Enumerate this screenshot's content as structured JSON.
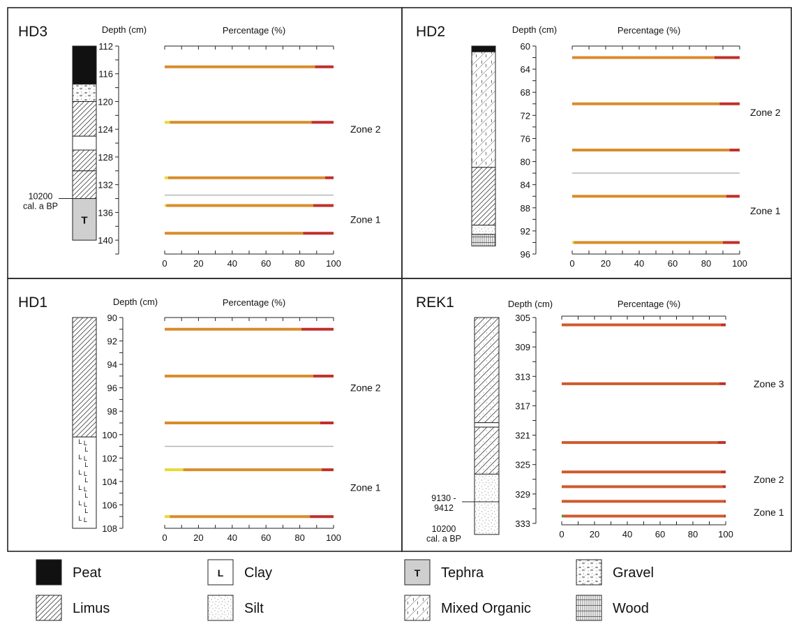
{
  "chart_data": [
    {
      "type": "bar",
      "site": "HD3",
      "depth_label": "Depth (cm)",
      "xlabel": "Percentage (%)",
      "depth_ticks": [
        112,
        116,
        120,
        124,
        128,
        132,
        136,
        140
      ],
      "depth_range": [
        112,
        142
      ],
      "x_ticks": [
        0,
        20,
        40,
        60,
        80,
        100
      ],
      "samples": [
        {
          "depth": 115,
          "segments": [
            {
              "color": "#d98c2b",
              "value": 89
            },
            {
              "color": "#c0302a",
              "value": 11
            }
          ]
        },
        {
          "depth": 123,
          "segments": [
            {
              "color": "#e8d83a",
              "value": 3
            },
            {
              "color": "#d98c2b",
              "value": 84
            },
            {
              "color": "#c0302a",
              "value": 13
            }
          ]
        },
        {
          "depth": 131,
          "segments": [
            {
              "color": "#e8d83a",
              "value": 2
            },
            {
              "color": "#d98c2b",
              "value": 93
            },
            {
              "color": "#c0302a",
              "value": 5
            }
          ]
        },
        {
          "depth": 135,
          "segments": [
            {
              "color": "#e8d83a",
              "value": 1
            },
            {
              "color": "#d98c2b",
              "value": 87
            },
            {
              "color": "#c0302a",
              "value": 12
            }
          ]
        },
        {
          "depth": 139,
          "segments": [
            {
              "color": "#d98c2b",
              "value": 82
            },
            {
              "color": "#c0302a",
              "value": 18
            }
          ]
        }
      ],
      "zone_boundaries": [
        133.5
      ],
      "zones": [
        {
          "label": "Zone 2",
          "depth": 124
        },
        {
          "label": "Zone 1",
          "depth": 137
        }
      ],
      "column": [
        {
          "from": 112,
          "to": 117.5,
          "type": "peat"
        },
        {
          "from": 117.5,
          "to": 120,
          "type": "gravel"
        },
        {
          "from": 120,
          "to": 125,
          "type": "limus"
        },
        {
          "from": 125,
          "to": 127,
          "type": "blank"
        },
        {
          "from": 127,
          "to": 130,
          "type": "limus"
        },
        {
          "from": 130,
          "to": 134,
          "type": "limus"
        },
        {
          "from": 134,
          "to": 140,
          "type": "tephra",
          "label": "T"
        }
      ],
      "date_annotation": {
        "lines": [
          "10200",
          "cal. a BP"
        ],
        "depth": 134
      }
    },
    {
      "type": "bar",
      "site": "HD2",
      "depth_label": "Depth (cm)",
      "xlabel": "Percentage (%)",
      "depth_ticks": [
        60,
        64,
        68,
        72,
        76,
        80,
        84,
        88,
        92,
        96
      ],
      "depth_range": [
        60,
        96
      ],
      "x_ticks": [
        0,
        20,
        40,
        60,
        80,
        100
      ],
      "samples": [
        {
          "depth": 62,
          "segments": [
            {
              "color": "#d98c2b",
              "value": 85
            },
            {
              "color": "#c0302a",
              "value": 15
            }
          ]
        },
        {
          "depth": 70,
          "segments": [
            {
              "color": "#d98c2b",
              "value": 88
            },
            {
              "color": "#c0302a",
              "value": 12
            }
          ]
        },
        {
          "depth": 78,
          "segments": [
            {
              "color": "#d98c2b",
              "value": 94
            },
            {
              "color": "#c0302a",
              "value": 6
            }
          ]
        },
        {
          "depth": 86,
          "segments": [
            {
              "color": "#d98c2b",
              "value": 92
            },
            {
              "color": "#c0302a",
              "value": 8
            }
          ]
        },
        {
          "depth": 94,
          "segments": [
            {
              "color": "#e8d83a",
              "value": 1
            },
            {
              "color": "#d98c2b",
              "value": 89
            },
            {
              "color": "#c0302a",
              "value": 10
            }
          ]
        }
      ],
      "zone_boundaries": [
        82
      ],
      "zones": [
        {
          "label": "Zone 2",
          "depth": 71.5
        },
        {
          "label": "Zone 1",
          "depth": 88.5
        }
      ],
      "column": [
        {
          "from": 60,
          "to": 61,
          "type": "peat"
        },
        {
          "from": 61,
          "to": 81,
          "type": "mixed"
        },
        {
          "from": 81,
          "to": 91,
          "type": "limus"
        },
        {
          "from": 91,
          "to": 92.6,
          "type": "silt"
        },
        {
          "from": 92.6,
          "to": 94.6,
          "type": "wood"
        }
      ]
    },
    {
      "type": "bar",
      "site": "HD1",
      "depth_label": "Depth (cm)",
      "xlabel": "Percentage (%)",
      "depth_ticks": [
        90,
        92,
        94,
        96,
        98,
        100,
        102,
        104,
        106,
        108
      ],
      "depth_range": [
        90,
        108
      ],
      "x_ticks": [
        0,
        20,
        40,
        60,
        80,
        100
      ],
      "samples": [
        {
          "depth": 91,
          "segments": [
            {
              "color": "#d98c2b",
              "value": 81
            },
            {
              "color": "#c0302a",
              "value": 19
            }
          ]
        },
        {
          "depth": 95,
          "segments": [
            {
              "color": "#d98c2b",
              "value": 88
            },
            {
              "color": "#c0302a",
              "value": 12
            }
          ]
        },
        {
          "depth": 99,
          "segments": [
            {
              "color": "#d98c2b",
              "value": 92
            },
            {
              "color": "#c0302a",
              "value": 8
            }
          ]
        },
        {
          "depth": 103,
          "segments": [
            {
              "color": "#e8d83a",
              "value": 11
            },
            {
              "color": "#d98c2b",
              "value": 82
            },
            {
              "color": "#c0302a",
              "value": 7
            }
          ]
        },
        {
          "depth": 107,
          "segments": [
            {
              "color": "#e8d83a",
              "value": 3
            },
            {
              "color": "#d98c2b",
              "value": 83
            },
            {
              "color": "#c0302a",
              "value": 14
            }
          ]
        }
      ],
      "zone_boundaries": [
        101
      ],
      "zones": [
        {
          "label": "Zone 2",
          "depth": 96
        },
        {
          "label": "Zone 1",
          "depth": 104.5
        }
      ],
      "column": [
        {
          "from": 90,
          "to": 100.2,
          "type": "limus"
        },
        {
          "from": 100.2,
          "to": 108,
          "type": "clay"
        }
      ]
    },
    {
      "type": "bar",
      "site": "REK1",
      "depth_label": "Depth (cm)",
      "xlabel": "Percentage (%)",
      "depth_ticks": [
        305,
        309,
        313,
        317,
        321,
        325,
        329,
        333
      ],
      "depth_range": [
        305,
        333
      ],
      "x_ticks": [
        0,
        20,
        40,
        60,
        80,
        100
      ],
      "samples": [
        {
          "depth": 306,
          "segments": [
            {
              "color": "#cf5a2c",
              "value": 97
            },
            {
              "color": "#c0302a",
              "value": 3
            }
          ]
        },
        {
          "depth": 314,
          "segments": [
            {
              "color": "#cf5a2c",
              "value": 96
            },
            {
              "color": "#c0302a",
              "value": 4
            }
          ]
        },
        {
          "depth": 322,
          "segments": [
            {
              "color": "#cf5a2c",
              "value": 95
            },
            {
              "color": "#c0302a",
              "value": 5
            }
          ]
        },
        {
          "depth": 326,
          "segments": [
            {
              "color": "#cf5a2c",
              "value": 97
            },
            {
              "color": "#c0302a",
              "value": 3
            }
          ]
        },
        {
          "depth": 328,
          "segments": [
            {
              "color": "#cf5a2c",
              "value": 98
            },
            {
              "color": "#c0302a",
              "value": 2
            }
          ]
        },
        {
          "depth": 330,
          "segments": [
            {
              "color": "#cf5a2c",
              "value": 99
            },
            {
              "color": "#c0302a",
              "value": 1
            }
          ]
        },
        {
          "depth": 332,
          "segments": [
            {
              "color": "#3a9a3a",
              "value": 1
            },
            {
              "color": "#cf5a2c",
              "value": 98
            },
            {
              "color": "#c0302a",
              "value": 1
            }
          ]
        }
      ],
      "zone_boundaries": [],
      "zones": [
        {
          "label": "Zone 3",
          "depth": 314
        },
        {
          "label": "Zone 2",
          "depth": 327
        },
        {
          "label": "Zone 1",
          "depth": 331.5
        }
      ],
      "column": [
        {
          "from": 305,
          "to": 319.3,
          "type": "limus-silt"
        },
        {
          "from": 319.3,
          "to": 319.9,
          "type": "blank"
        },
        {
          "from": 319.9,
          "to": 326.3,
          "type": "limus-silt"
        },
        {
          "from": 326.3,
          "to": 334.5,
          "type": "silt"
        }
      ],
      "column_depth_extent": [
        305,
        334.5
      ],
      "date_annotation": {
        "lines": [
          "9130 -",
          "9412"
        ],
        "depth": 330
      },
      "date_annotation_2": {
        "lines": [
          "10200",
          "cal. a BP"
        ]
      }
    }
  ],
  "legend": [
    {
      "label": "Peat",
      "type": "peat"
    },
    {
      "label": "Clay",
      "type": "clay",
      "symbol": "L"
    },
    {
      "label": "Tephra",
      "type": "tephra",
      "symbol": "T"
    },
    {
      "label": "Gravel",
      "type": "gravel"
    },
    {
      "label": "Limus",
      "type": "limus"
    },
    {
      "label": "Silt",
      "type": "silt"
    },
    {
      "label": "Mixed Organic",
      "type": "mixed"
    },
    {
      "label": "Wood",
      "type": "wood"
    }
  ],
  "colors": {
    "peat": "#111111",
    "tephra": "#cfcfcf",
    "zone_line": "#b0b0b0"
  }
}
